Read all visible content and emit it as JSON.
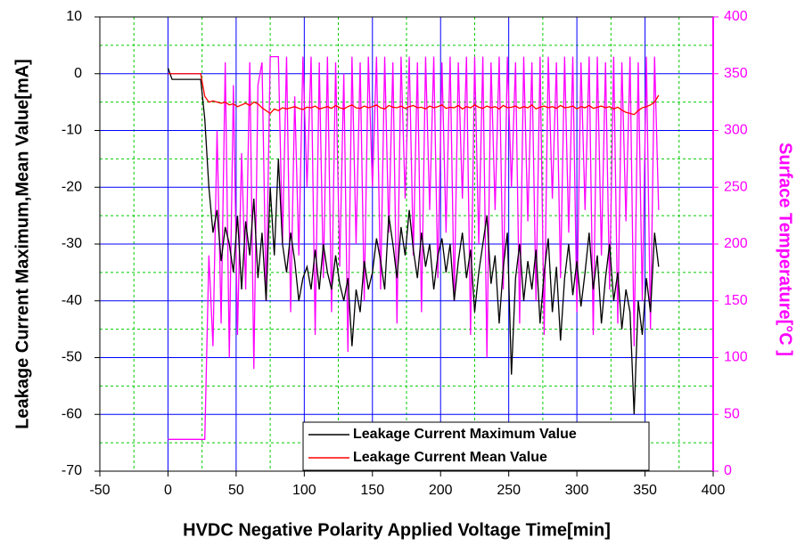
{
  "chart_data": {
    "type": "line",
    "x_label": "HVDC Negative Polarity Applied Voltage Time[min]",
    "y_label": "Leakage Current Maximum,Mean Value[mA]",
    "y2_label": "Surface Temperature[°C ]",
    "xlim": [
      -50,
      400
    ],
    "xticks": [
      -50,
      0,
      50,
      100,
      150,
      200,
      250,
      300,
      350,
      400
    ],
    "ylim": [
      -70,
      10
    ],
    "yticks": [
      -70,
      -60,
      -50,
      -40,
      -30,
      -20,
      -10,
      0,
      10
    ],
    "y2lim": [
      0,
      400
    ],
    "y2ticks": [
      0,
      50,
      100,
      150,
      200,
      250,
      300,
      350,
      400
    ],
    "y2_color": "#ff00ff",
    "grid": true,
    "legend": "bottom-right",
    "x": [
      0,
      3,
      6,
      9,
      12,
      15,
      18,
      21,
      24,
      27,
      30,
      33,
      36,
      39,
      42,
      45,
      48,
      51,
      54,
      57,
      60,
      63,
      66,
      69,
      72,
      75,
      78,
      81,
      84,
      87,
      90,
      93,
      96,
      99,
      102,
      105,
      108,
      111,
      114,
      117,
      120,
      123,
      126,
      129,
      132,
      135,
      138,
      141,
      144,
      147,
      150,
      153,
      156,
      159,
      162,
      165,
      168,
      171,
      174,
      177,
      180,
      183,
      186,
      189,
      192,
      195,
      198,
      201,
      204,
      207,
      210,
      213,
      216,
      219,
      222,
      225,
      228,
      231,
      234,
      237,
      240,
      243,
      246,
      249,
      252,
      255,
      258,
      261,
      264,
      267,
      270,
      273,
      276,
      279,
      282,
      285,
      288,
      291,
      294,
      297,
      300,
      303,
      306,
      309,
      312,
      315,
      318,
      321,
      324,
      327,
      330,
      333,
      336,
      339,
      342,
      345,
      348,
      351,
      354,
      357,
      360
    ],
    "series": [
      {
        "axis": "y2",
        "color": "#ff00ff",
        "values": [
          28,
          28,
          28,
          28,
          28,
          28,
          28,
          28,
          28,
          28,
          190,
          110,
          300,
          130,
          360,
          100,
          340,
          120,
          280,
          160,
          360,
          90,
          340,
          360,
          150,
          365,
          365,
          365,
          200,
          365,
          140,
          330,
          190,
          365,
          250,
          365,
          120,
          360,
          170,
          365,
          140,
          360,
          180,
          350,
          105,
          365,
          200,
          360,
          150,
          365,
          250,
          365,
          160,
          365,
          210,
          360,
          130,
          365,
          240,
          365,
          190,
          360,
          140,
          365,
          230,
          365,
          170,
          360,
          210,
          365,
          150,
          360,
          240,
          365,
          120,
          365,
          200,
          365,
          100,
          360,
          230,
          365,
          160,
          365,
          250,
          360,
          130,
          365,
          220,
          360,
          150,
          365,
          120,
          365,
          240,
          360,
          170,
          365,
          210,
          365,
          140,
          360,
          230,
          365,
          120,
          365,
          190,
          360,
          160,
          365,
          130,
          360,
          220,
          365,
          110,
          360,
          150,
          365,
          125,
          365,
          230
        ]
      },
      {
        "name": "Leakage Current Maximum Value",
        "color": "#000000",
        "values": [
          1,
          -1,
          -1,
          -1,
          -1,
          -1,
          -1,
          -1,
          -1,
          -8,
          -20,
          -28,
          -24,
          -33,
          -27,
          -30,
          -35,
          -25,
          -38,
          -26,
          -32,
          -22,
          -36,
          -28,
          -40,
          -20,
          -32,
          -15,
          -30,
          -35,
          -28,
          -33,
          -40,
          -36,
          -34,
          -38,
          -31,
          -38,
          -30,
          -35,
          -38,
          -32,
          -37,
          -40,
          -36,
          -48,
          -38,
          -42,
          -33,
          -38,
          -35,
          -29,
          -33,
          -38,
          -25,
          -30,
          -36,
          -27,
          -32,
          -24,
          -31,
          -36,
          -28,
          -34,
          -30,
          -38,
          -32,
          -29,
          -35,
          -30,
          -40,
          -33,
          -28,
          -36,
          -31,
          -42,
          -35,
          -30,
          -25,
          -37,
          -32,
          -44,
          -34,
          -28,
          -53,
          -36,
          -30,
          -40,
          -33,
          -38,
          -31,
          -44,
          -35,
          -29,
          -42,
          -34,
          -47,
          -36,
          -30,
          -39,
          -33,
          -41,
          -35,
          -28,
          -38,
          -32,
          -44,
          -36,
          -30,
          -40,
          -35,
          -45,
          -38,
          -42,
          -60,
          -40,
          -46,
          -36,
          -42,
          -28,
          -34
        ]
      },
      {
        "name": "Leakage Current Mean Value",
        "color": "#ff0000",
        "values": [
          0,
          0,
          0,
          0,
          0,
          0,
          0,
          0,
          0,
          -4,
          -5,
          -4.8,
          -5,
          -5.2,
          -5,
          -5.5,
          -5.3,
          -5.8,
          -5.5,
          -5.2,
          -5.6,
          -5,
          -5.3,
          -6,
          -6.5,
          -7,
          -6.2,
          -6.5,
          -6,
          -6.2,
          -6,
          -5.8,
          -6.1,
          -6.3,
          -5.9,
          -6,
          -5.7,
          -6.2,
          -6,
          -5.8,
          -6.1,
          -5.6,
          -6,
          -6.2,
          -5.8,
          -5.5,
          -6,
          -6.1,
          -5.7,
          -6,
          -5.8,
          -5.5,
          -6,
          -6.2,
          -5.6,
          -5.9,
          -6,
          -5.7,
          -6.1,
          -5.8,
          -5.6,
          -6,
          -5.9,
          -6.2,
          -5.7,
          -6,
          -5.8,
          -5.5,
          -6.1,
          -5.9,
          -6,
          -5.6,
          -6.2,
          -5.8,
          -6,
          -5.5,
          -5.9,
          -6.1,
          -5.7,
          -6,
          -5.8,
          -6.2,
          -5.6,
          -6,
          -5.9,
          -5.7,
          -6.1,
          -5.8,
          -6,
          -5.5,
          -6.2,
          -5.9,
          -5.7,
          -6,
          -5.8,
          -6.1,
          -5.6,
          -6,
          -5.9,
          -5.7,
          -6.2,
          -5.8,
          -6,
          -5.6,
          -6.1,
          -5.9,
          -5.7,
          -6,
          -5.8,
          -6.2,
          -5.9,
          -6.4,
          -6.8,
          -7,
          -7.2,
          -6.5,
          -6,
          -5.8,
          -5.5,
          -5,
          -3.8
        ]
      }
    ]
  }
}
